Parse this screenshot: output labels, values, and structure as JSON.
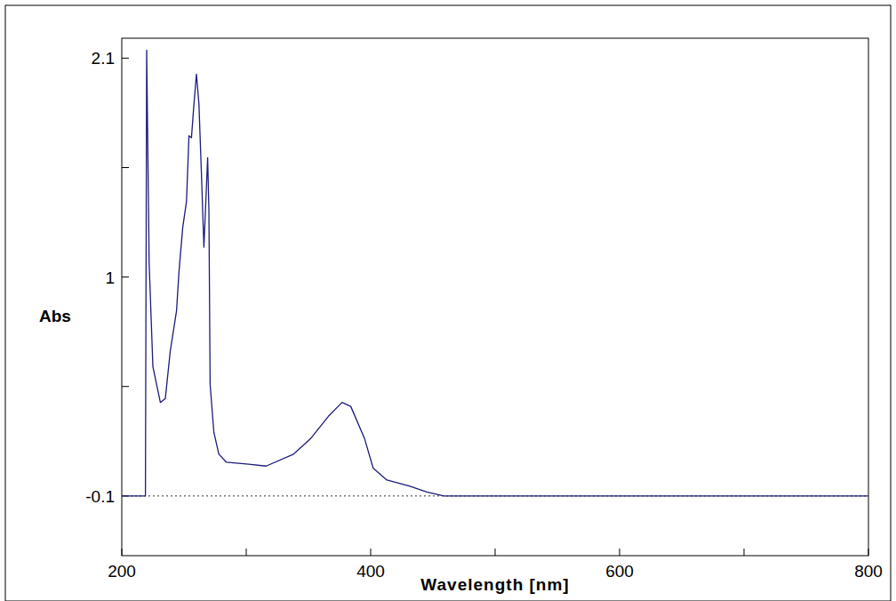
{
  "chart_data": {
    "type": "line",
    "x_label": "Wavelength [nm]",
    "y_label": "Abs",
    "color": "#1c1c7a",
    "xlim": [
      200,
      800
    ],
    "xticks": [
      200,
      400,
      600,
      800
    ],
    "ylim": [
      -0.4,
      2.2
    ],
    "yticks": [
      -0.1,
      1,
      2.1
    ],
    "x": [
      200,
      219,
      220,
      222,
      225,
      231,
      235,
      239,
      244,
      246,
      249,
      252,
      254,
      256,
      258,
      260,
      262,
      264,
      266,
      269,
      270,
      271,
      274,
      278,
      284,
      302,
      316,
      338,
      352,
      366,
      377,
      384,
      395,
      402,
      413,
      431,
      445,
      459,
      500,
      600,
      700,
      800
    ],
    "values": [
      -0.1,
      -0.1,
      2.14,
      1.07,
      0.55,
      0.37,
      0.39,
      0.63,
      0.83,
      1.03,
      1.25,
      1.38,
      1.71,
      1.7,
      1.87,
      2.02,
      1.87,
      1.52,
      1.15,
      1.6,
      1.34,
      0.46,
      0.22,
      0.11,
      0.07,
      0.06,
      0.05,
      0.11,
      0.19,
      0.3,
      0.37,
      0.35,
      0.19,
      0.04,
      -0.02,
      -0.05,
      -0.08,
      -0.1,
      -0.1,
      -0.1,
      -0.1,
      -0.1
    ]
  }
}
